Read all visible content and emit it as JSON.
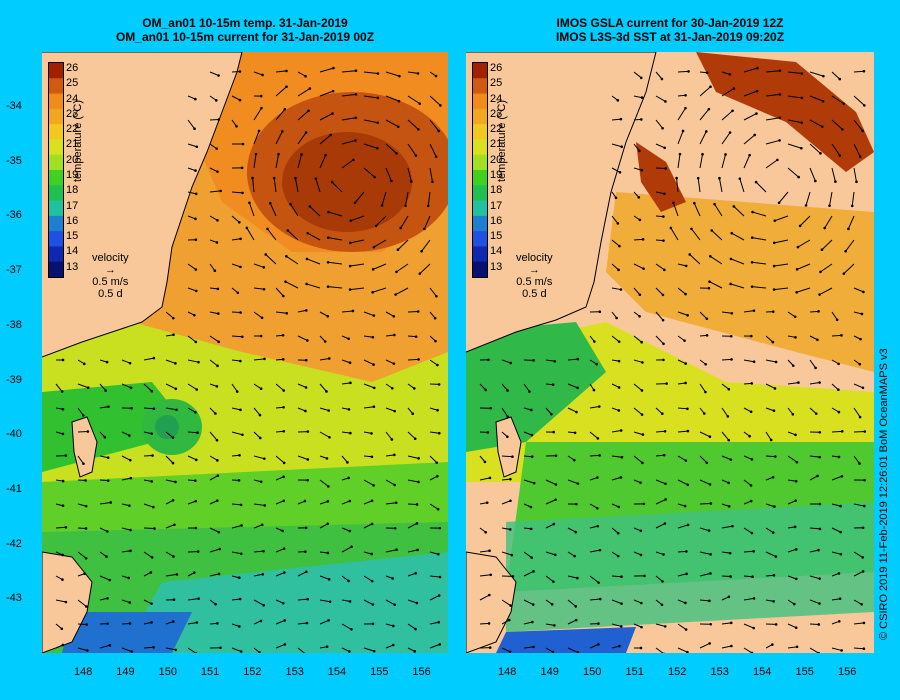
{
  "left": {
    "title_line1": "OM_an01 10-15m temp. 31-Jan-2019",
    "title_line2": "OM_an01 10-15m current for 31-Jan-2019 00Z"
  },
  "right": {
    "title_line1": "IMOS GSLA current for 30-Jan-2019 12Z",
    "title_line2": "IMOS L3S-3d SST at 31-Jan-2019 09:20Z"
  },
  "colorbar": {
    "label": "temperature (°C)",
    "ticks": [
      "26",
      "25",
      "24",
      "23",
      "22",
      "21",
      "20",
      "19",
      "18",
      "17",
      "16",
      "15",
      "14",
      "13"
    ],
    "colors": [
      "#a02000",
      "#d05a10",
      "#f08a18",
      "#f0a820",
      "#f0c820",
      "#d8e020",
      "#a0e020",
      "#40d020",
      "#20c050",
      "#20c0a0",
      "#2080d0",
      "#2050e0",
      "#1028b0",
      "#081070"
    ]
  },
  "legend": {
    "title": "velocity",
    "speed": "0.5 m/s",
    "time": "0.5 d"
  },
  "lat_ticks": [
    "-34",
    "-35",
    "-36",
    "-37",
    "-38",
    "-39",
    "-40",
    "-41",
    "-42",
    "-43"
  ],
  "lon_ticks": [
    "148",
    "149",
    "150",
    "151",
    "152",
    "153",
    "154",
    "155",
    "156"
  ],
  "credit": "© CSIRO 2019   11-Feb-2019 12:26:01 BoM OceanMAPS v3"
}
